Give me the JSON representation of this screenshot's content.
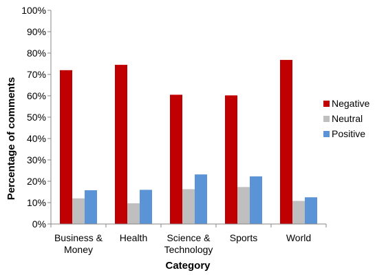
{
  "chart_data": {
    "type": "bar",
    "title": "",
    "xlabel": "Category",
    "ylabel": "Percentage of comments",
    "categories": [
      [
        "Business &",
        "Money"
      ],
      [
        "Health"
      ],
      [
        "Science &",
        "Technology"
      ],
      [
        "Sports"
      ],
      [
        "World"
      ]
    ],
    "series": [
      {
        "name": "Negative",
        "color": "#C00000",
        "values": [
          72,
          74.5,
          60.5,
          60.2,
          76.8
        ]
      },
      {
        "name": "Neutral",
        "color": "#BFBFBF",
        "values": [
          12,
          9.7,
          16.3,
          17.3,
          10.8
        ]
      },
      {
        "name": "Positive",
        "color": "#5B93D7",
        "values": [
          15.8,
          16,
          23.2,
          22.3,
          12.5
        ]
      }
    ],
    "ylim": [
      0,
      100
    ],
    "yticks": [
      0,
      10,
      20,
      30,
      40,
      50,
      60,
      70,
      80,
      90,
      100
    ],
    "ytick_labels": [
      "0%",
      "10%",
      "20%",
      "30%",
      "40%",
      "50%",
      "60%",
      "70%",
      "80%",
      "90%",
      "100%"
    ],
    "grid": false,
    "legend_position": "right"
  }
}
